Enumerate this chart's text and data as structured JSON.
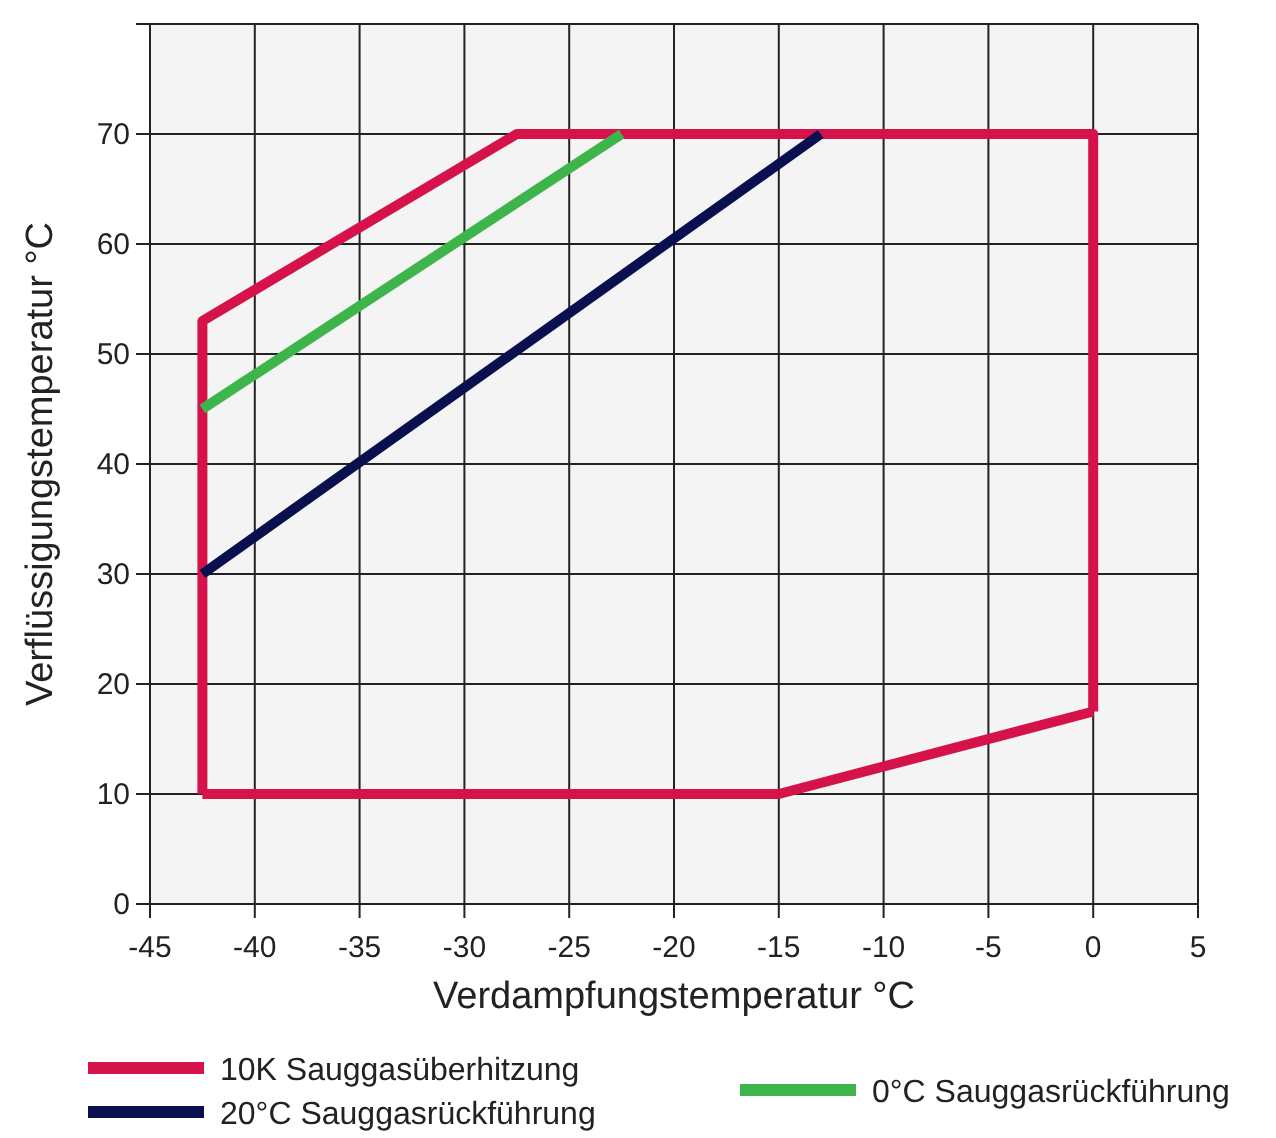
{
  "chart_data": {
    "type": "line",
    "xlabel": "Verdampfungstemperatur °C",
    "ylabel": "Verflüssigungstemperatur °C",
    "xlim": [
      -45,
      5
    ],
    "xticks": [
      -45,
      -40,
      -35,
      -30,
      -25,
      -20,
      -15,
      -10,
      -5,
      0,
      5
    ],
    "ylim": [
      0,
      80
    ],
    "yticks": [
      0,
      10,
      20,
      30,
      40,
      50,
      60,
      70,
      {
        "value": 80,
        "label": null
      }
    ],
    "grid": true,
    "legend": "bottom",
    "marker": "none",
    "line_style": "solid",
    "series": [
      {
        "name": "10K Sauggasüberhitzung",
        "color": "#d5134a",
        "x": [
          -42.5,
          -42.5,
          -27.5,
          0,
          0
        ],
        "values": [
          10,
          53,
          70,
          70,
          17.5
        ]
      },
      {
        "color": "#d5134a",
        "x": [
          -42.5,
          -15,
          0
        ],
        "values": [
          10,
          10,
          17.5
        ]
      },
      {
        "name": "20°C Sauggasrückführung",
        "color": "#0a0f4f",
        "x": [
          -42.5,
          -13
        ],
        "values": [
          30,
          70
        ]
      },
      {
        "name": "0°C Sauggasrückführung",
        "color": "#3db54a",
        "x": [
          -42.5,
          -22.5
        ],
        "values": [
          45,
          70
        ]
      }
    ]
  }
}
